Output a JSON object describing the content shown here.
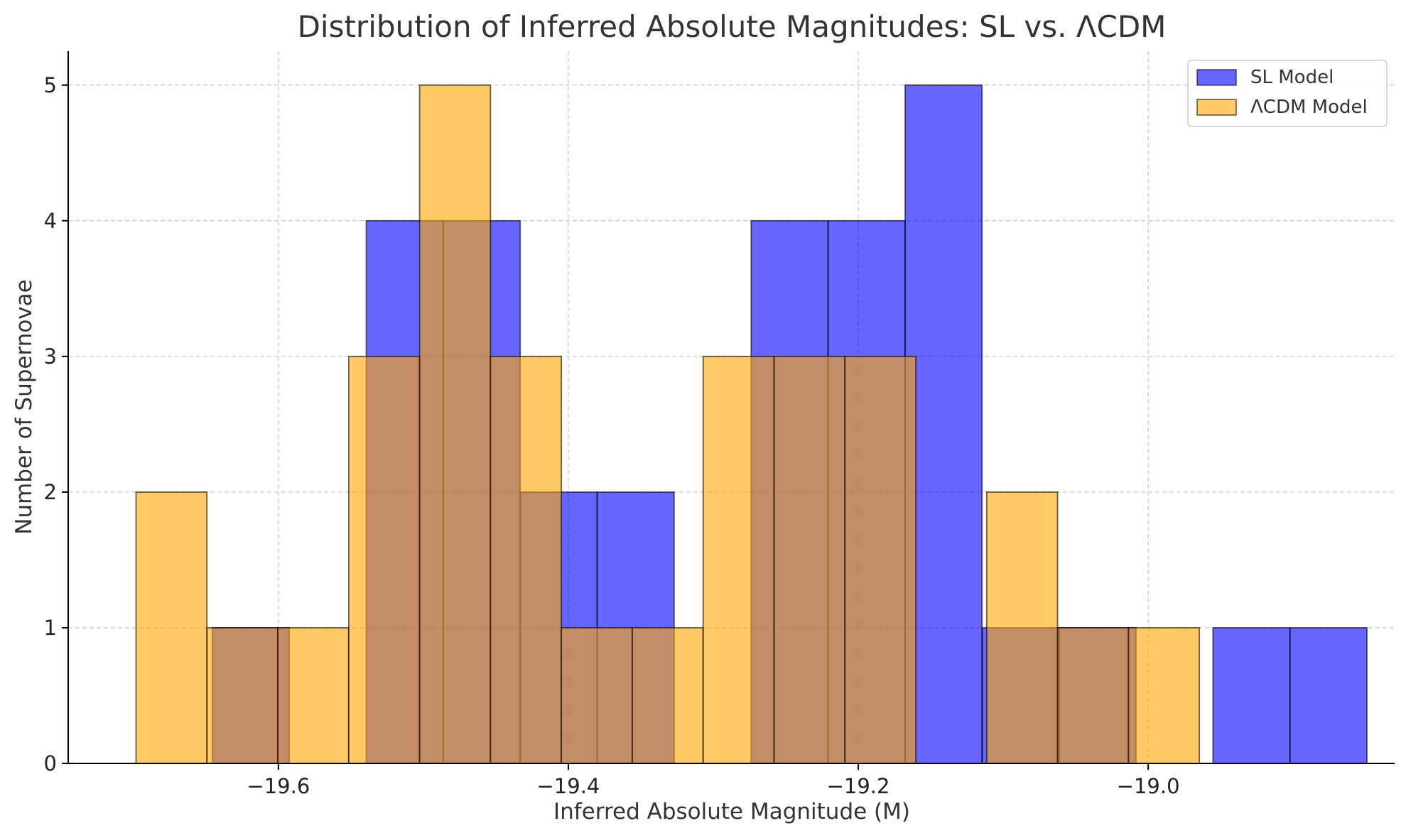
{
  "chart_data": {
    "type": "bar",
    "title": "Distribution of Inferred Absolute Magnitudes: SL vs. ΛCDM",
    "xlabel": "Inferred Absolute Magnitude (M)",
    "ylabel": "Number of Supernovae",
    "xlim": [
      -19.745,
      -18.83
    ],
    "ylim": [
      0,
      5.25
    ],
    "x_ticks": [
      -19.6,
      -19.4,
      -19.2,
      -19.0
    ],
    "x_tick_labels": [
      "−19.6",
      "−19.4",
      "−19.2",
      "−19.0"
    ],
    "y_ticks": [
      0,
      1,
      2,
      3,
      4,
      5
    ],
    "y_tick_labels": [
      "0",
      "1",
      "2",
      "3",
      "4",
      "5"
    ],
    "grid": true,
    "legend_position": "top-right",
    "series": [
      {
        "name": "SL Model",
        "color": "#0000ff",
        "alpha": 0.6,
        "bin_width": 0.0531,
        "bin_edges": [
          -19.6456,
          -19.5925,
          -19.5394,
          -19.4863,
          -19.4332,
          -19.3801,
          -19.327,
          -19.2739,
          -19.2208,
          -19.1677,
          -19.1146,
          -19.0615,
          -19.0084,
          -18.9553,
          -18.9022,
          -18.8491
        ],
        "counts": [
          1,
          0,
          4,
          4,
          2,
          2,
          0,
          4,
          4,
          5,
          1,
          1,
          0,
          1,
          1
        ]
      },
      {
        "name": "ΛCDM Model",
        "color": "#ffa500",
        "alpha": 0.6,
        "bin_width": 0.0489,
        "bin_edges": [
          -19.6982,
          -19.6493,
          -19.6004,
          -19.5515,
          -19.5026,
          -19.4537,
          -19.4048,
          -19.3559,
          -19.307,
          -19.2581,
          -19.2092,
          -19.1603,
          -19.1114,
          -19.0625,
          -19.0136,
          -18.9647
        ],
        "counts": [
          2,
          1,
          1,
          3,
          5,
          3,
          1,
          1,
          3,
          3,
          3,
          0,
          2,
          1,
          1
        ]
      }
    ]
  }
}
